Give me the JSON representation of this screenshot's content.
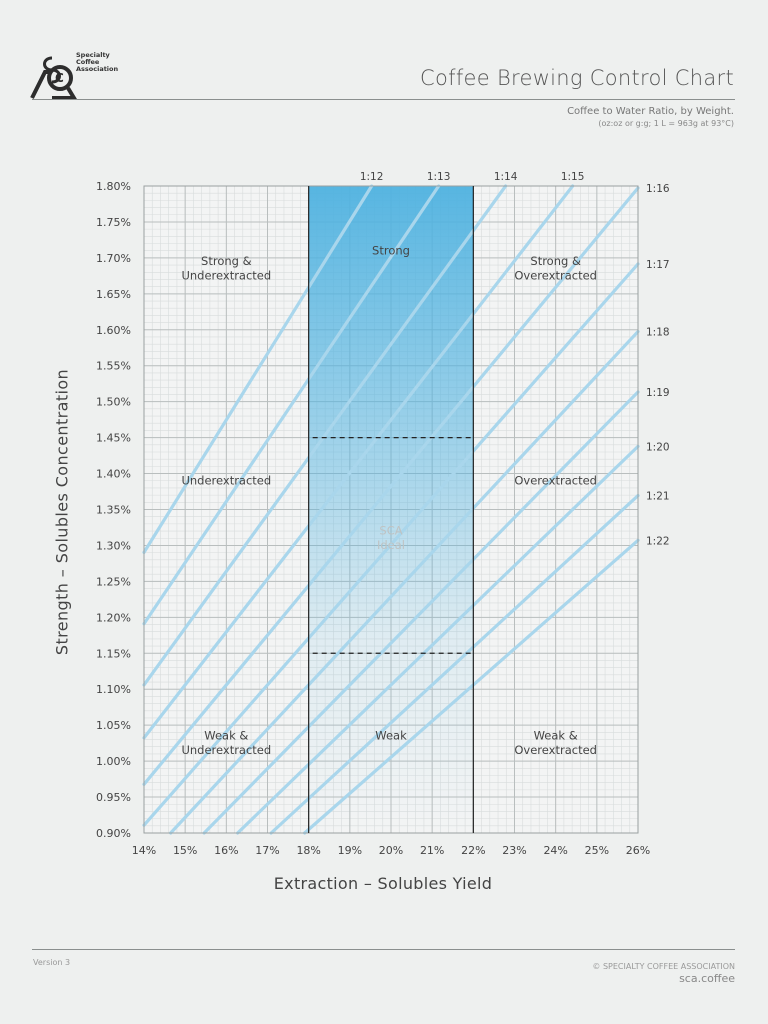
{
  "logo": {
    "text_line1": "Specialty",
    "text_line2": "Coffee",
    "text_line3": "Association"
  },
  "header": {
    "title": "Coffee Brewing Control Chart",
    "subtitle": "Coffee to Water Ratio, by Weight.",
    "subnote": "(oz:oz or g:g; 1 L = 963g at 93°C)"
  },
  "footer": {
    "version": "Version 3",
    "copyright": "© SPECIALTY COFFEE ASSOCIATION",
    "website": "sca.coffee"
  },
  "colors": {
    "grid_minor": "#d8dcdc",
    "grid_major": "#b9bebe",
    "ratio_line": "#a9d6ec",
    "ideal_fill": "#4fb2e0",
    "frame": "#222222",
    "text": "#444444"
  },
  "chart_data": {
    "type": "line",
    "xlabel": "Extraction – Solubles Yield",
    "ylabel": "Strength – Solubles Concentration",
    "xlim": [
      14,
      26
    ],
    "ylim": [
      0.9,
      1.8
    ],
    "x_ticks": [
      "14%",
      "15%",
      "16%",
      "17%",
      "18%",
      "19%",
      "20%",
      "21%",
      "22%",
      "23%",
      "24%",
      "25%",
      "26%"
    ],
    "y_ticks": [
      "0.90%",
      "0.95%",
      "1.00%",
      "1.05%",
      "1.10%",
      "1.15%",
      "1.20%",
      "1.25%",
      "1.30%",
      "1.35%",
      "1.40%",
      "1.45%",
      "1.50%",
      "1.55%",
      "1.60%",
      "1.65%",
      "1.70%",
      "1.75%",
      "1.80%"
    ],
    "grid": true,
    "ratio_lines": [
      {
        "label": "1:12",
        "ratio": 12
      },
      {
        "label": "1:13",
        "ratio": 13
      },
      {
        "label": "1:14",
        "ratio": 14
      },
      {
        "label": "1:15",
        "ratio": 15
      },
      {
        "label": "1:16",
        "ratio": 16
      },
      {
        "label": "1:17",
        "ratio": 17
      },
      {
        "label": "1:18",
        "ratio": 18
      },
      {
        "label": "1:19",
        "ratio": 19
      },
      {
        "label": "1:20",
        "ratio": 20
      },
      {
        "label": "1:21",
        "ratio": 21
      },
      {
        "label": "1:22",
        "ratio": 22
      }
    ],
    "ratio_label_positions": {
      "top": [
        "1:12",
        "1:13",
        "1:14",
        "1:15"
      ],
      "right": [
        "1:16",
        "1:17",
        "1:18",
        "1:19",
        "1:20",
        "1:21",
        "1:22"
      ]
    },
    "extraction_bounds": [
      18,
      22
    ],
    "ideal_strength": [
      1.15,
      1.45
    ],
    "regions": [
      {
        "label": "Strong &\nUnderextracted",
        "x": 16,
        "y": 1.69
      },
      {
        "label": "Strong",
        "x": 20,
        "y": 1.705
      },
      {
        "label": "Strong &\nOverextracted",
        "x": 24,
        "y": 1.69
      },
      {
        "label": "Underextracted",
        "x": 16,
        "y": 1.385
      },
      {
        "label": "SCA\nIdeal",
        "x": 20,
        "y": 1.315
      },
      {
        "label": "Overextracted",
        "x": 24,
        "y": 1.385
      },
      {
        "label": "Weak &\nUnderextracted",
        "x": 16,
        "y": 1.03
      },
      {
        "label": "Weak",
        "x": 20,
        "y": 1.03
      },
      {
        "label": "Weak &\nOverextracted",
        "x": 24,
        "y": 1.03
      }
    ]
  }
}
